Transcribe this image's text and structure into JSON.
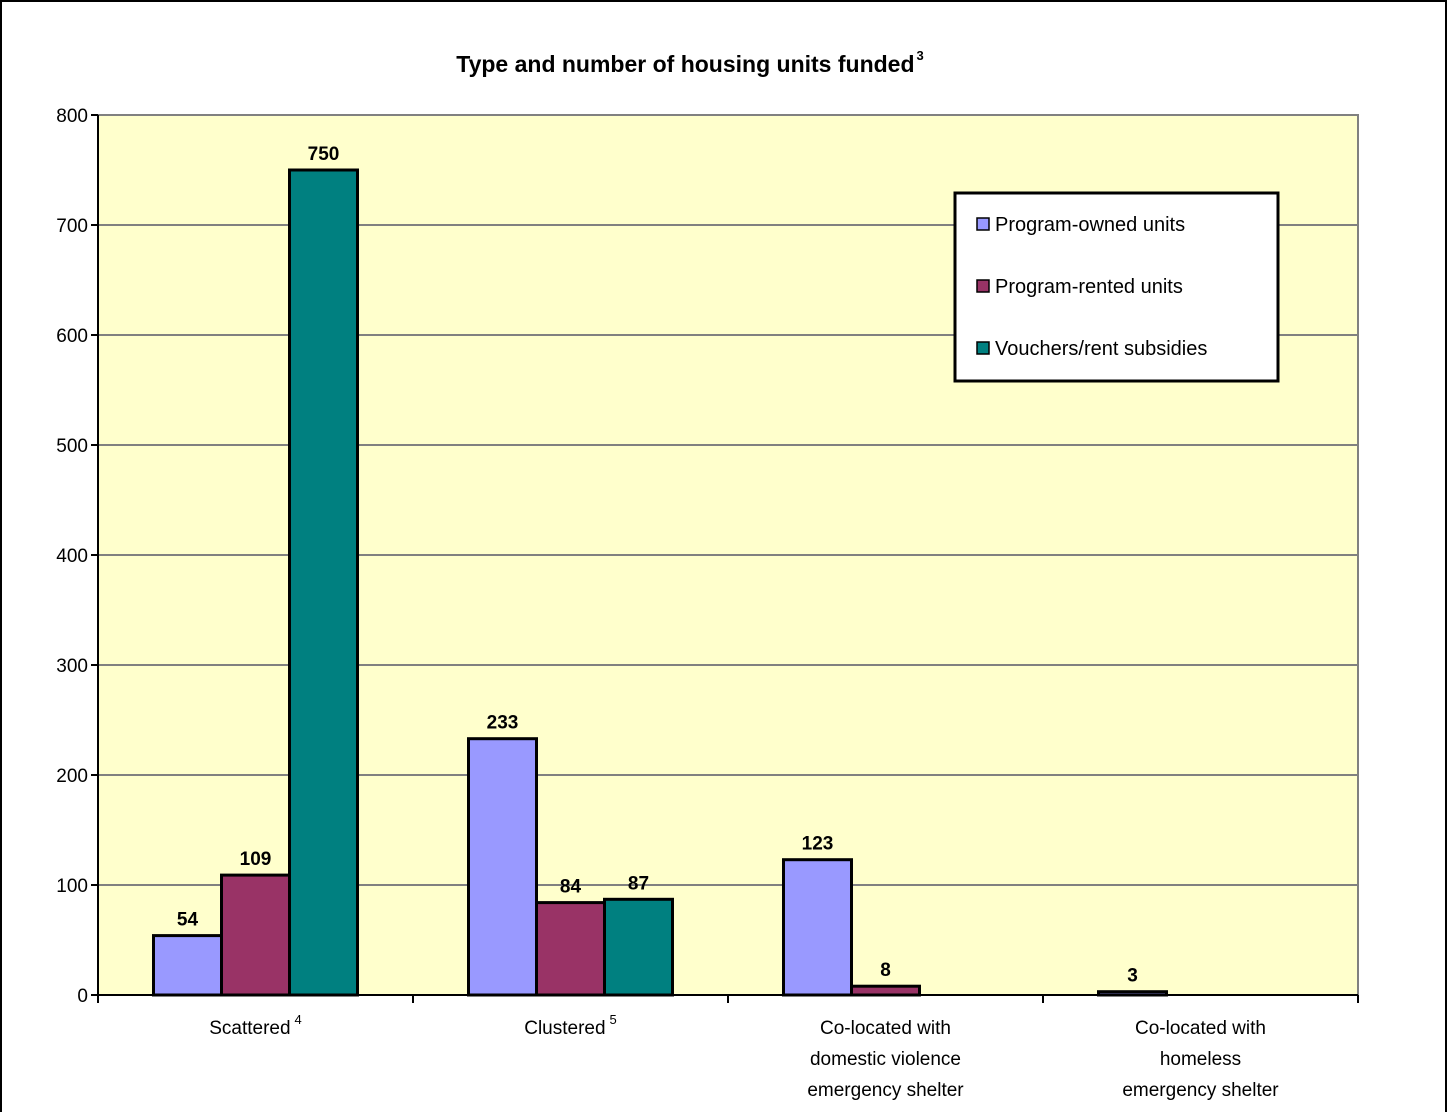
{
  "chart_data": {
    "type": "bar",
    "title": "Type and number of housing units funded",
    "title_superscript": "3",
    "categories": [
      "Scattered",
      "Clustered",
      "Co-located with domestic violence emergency shelter",
      "Co-located with homeless emergency shelter"
    ],
    "category_superscripts": [
      "4",
      "5",
      null,
      null
    ],
    "series": [
      {
        "name": "Program-owned units",
        "color": "#9999ff",
        "values": [
          54,
          233,
          123,
          3
        ]
      },
      {
        "name": "Program-rented units",
        "color": "#993366",
        "values": [
          109,
          84,
          8,
          null
        ]
      },
      {
        "name": "Vouchers/rent subsidies",
        "color": "#008080",
        "values": [
          750,
          87,
          null,
          null
        ]
      }
    ],
    "ylim": [
      0,
      800
    ],
    "yticks": [
      0,
      100,
      200,
      300,
      400,
      500,
      600,
      700,
      800
    ],
    "grid": true,
    "legend": "upper right",
    "plot_background": "#ffffcc"
  }
}
